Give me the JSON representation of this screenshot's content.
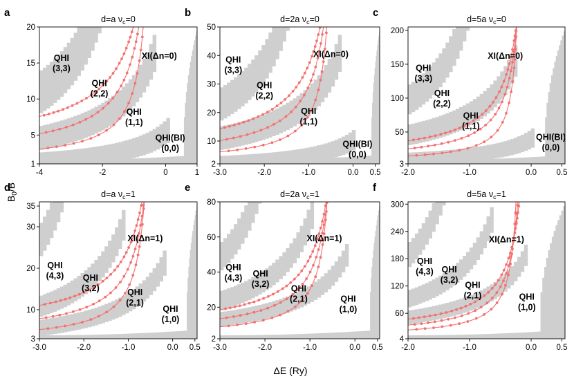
{
  "figure": {
    "xlabel": "ΔE (Ry)",
    "ylabel": "B₀/B"
  },
  "chart_data": [
    {
      "panel": "a",
      "title_d": "d=a",
      "title_nu": "ν",
      "title_nu_sub": "c",
      "title_nu_val": "=0",
      "type": "heatmap",
      "xlim": [
        -4.0,
        1.0
      ],
      "ylim": [
        1,
        20
      ],
      "xticks": [
        -4,
        -2,
        0,
        1
      ],
      "xtick_labels": [
        "-4",
        "-2",
        "0",
        "1"
      ],
      "yticks": [
        1,
        5,
        10,
        15,
        20
      ],
      "ytick_labels": [
        "1",
        "5",
        "10",
        "15",
        "20"
      ],
      "regions": [
        {
          "label": "QHI",
          "sub": "(3,3)",
          "x": -3.3,
          "y": 15.3
        },
        {
          "label": "QHI",
          "sub": "(2,2)",
          "x": -2.1,
          "y": 11.8
        },
        {
          "label": "QHI",
          "sub": "(1,1)",
          "x": -1.0,
          "y": 7.8
        },
        {
          "label": "XI(Δn=0)",
          "sub": "",
          "x": -0.2,
          "y": 15.6
        },
        {
          "label": "QHI(BI)",
          "sub": "(0,0)",
          "x": 0.15,
          "y": 4.2
        }
      ],
      "bands": [
        {
          "h0": 19.5,
          "width": 3.6,
          "v0": -2.4
        },
        {
          "h0": 11.5,
          "width": 2.2,
          "v0": -0.95
        },
        {
          "h0": 4.0,
          "width": 1.5,
          "v0": -0.5
        }
      ],
      "curves": [
        {
          "A": 3.0,
          "c": 0.45,
          "offset": 1.2
        },
        {
          "A": 5.4,
          "c": 0.45,
          "offset": 2.0
        },
        {
          "A": 7.6,
          "c": 0.45,
          "offset": 3.3
        }
      ],
      "bulk": {
        "x0": 0.55,
        "x1": 1.0
      }
    },
    {
      "panel": "b",
      "title_d": "d=2a",
      "title_nu": "ν",
      "title_nu_sub": "c",
      "title_nu_val": "=0",
      "type": "heatmap",
      "xlim": [
        -3.0,
        0.6
      ],
      "ylim": [
        2,
        50
      ],
      "xticks": [
        -3.0,
        -2.0,
        -1.0,
        0.0,
        0.5
      ],
      "xtick_labels": [
        "-3.0",
        "-2.0",
        "-1.0",
        "0.0",
        "0.5"
      ],
      "yticks": [
        2,
        10,
        20,
        30,
        40,
        50
      ],
      "ytick_labels": [
        "2",
        "10",
        "20",
        "30",
        "40",
        "50"
      ],
      "regions": [
        {
          "label": "QHI",
          "sub": "(3,3)",
          "x": -2.7,
          "y": 37.5
        },
        {
          "label": "QHI",
          "sub": "(2,2)",
          "x": -2.0,
          "y": 28.5
        },
        {
          "label": "QHI",
          "sub": "(1,1)",
          "x": -1.0,
          "y": 19.5
        },
        {
          "label": "XI(Δn=0)",
          "sub": "",
          "x": -0.5,
          "y": 39.5
        },
        {
          "label": "QHI(BI)",
          "sub": "(0,0)",
          "x": 0.1,
          "y": 8.0
        }
      ],
      "bands": [
        {
          "h0": 40.0,
          "width": 7.0,
          "v0": -1.9
        },
        {
          "h0": 28.0,
          "width": 5.5,
          "v0": -0.75
        },
        {
          "h0": 7.0,
          "width": 3.0,
          "v0": -0.45
        }
      ],
      "curves": [
        {
          "A": 6.5,
          "c": 0.45,
          "offset": 2.2
        },
        {
          "A": 12.2,
          "c": 0.45,
          "offset": 3.0
        },
        {
          "A": 17.5,
          "c": 0.45,
          "offset": 4.5
        }
      ],
      "bulk": {
        "x0": 0.4,
        "x1": 0.6
      }
    },
    {
      "panel": "c",
      "title_d": "d=5a",
      "title_nu": "ν",
      "title_nu_sub": "c",
      "title_nu_val": "=0",
      "type": "heatmap",
      "xlim": [
        -2.0,
        0.55
      ],
      "ylim": [
        3,
        205
      ],
      "xticks": [
        -2.0,
        -1.0,
        0.0,
        0.5
      ],
      "xtick_labels": [
        "-2.0",
        "-1.0",
        "0.0",
        "0.5"
      ],
      "yticks": [
        3,
        50,
        100,
        150,
        200
      ],
      "ytick_labels": [
        "3",
        "50",
        "100",
        "150",
        "200"
      ],
      "regions": [
        {
          "label": "QHI",
          "sub": "(3,3)",
          "x": -1.75,
          "y": 140
        },
        {
          "label": "QHI",
          "sub": "(2,2)",
          "x": -1.45,
          "y": 103
        },
        {
          "label": "QHI",
          "sub": "(1,1)",
          "x": -0.98,
          "y": 70
        },
        {
          "label": "XI(Δn=0)",
          "sub": "",
          "x": -0.42,
          "y": 158
        },
        {
          "label": "QHI(BI)",
          "sub": "(0,0)",
          "x": 0.32,
          "y": 38
        }
      ],
      "bands": [
        {
          "h0": 158,
          "width": 26,
          "v0": -1.35
        },
        {
          "h0": 110,
          "width": 20,
          "v0": -0.55
        },
        {
          "h0": 28,
          "width": 12,
          "v0": -0.3
        }
      ],
      "curves": [
        {
          "A": 22,
          "c": 0.35,
          "offset": 4
        },
        {
          "A": 42,
          "c": 0.35,
          "offset": 6
        },
        {
          "A": 62,
          "c": 0.35,
          "offset": 10
        }
      ],
      "bulk": {
        "x0": 0.2,
        "x1": 0.55
      }
    },
    {
      "panel": "d",
      "title_d": "d=a",
      "title_nu": "ν",
      "title_nu_sub": "c",
      "title_nu_val": "=1",
      "type": "heatmap",
      "xlim": [
        -3.0,
        0.55
      ],
      "ylim": [
        3,
        36
      ],
      "xticks": [
        -3.0,
        -2.0,
        -1.0,
        0.0,
        0.5
      ],
      "xtick_labels": [
        "-3.0",
        "-2.0",
        "-1.0",
        "0.0",
        "0.5"
      ],
      "yticks": [
        3,
        10,
        20,
        30,
        35
      ],
      "ytick_labels": [
        "3",
        "10",
        "20",
        "30",
        "35"
      ],
      "regions": [
        {
          "label": "QHI",
          "sub": "(4,3)",
          "x": -2.65,
          "y": 20.0
        },
        {
          "label": "QHI",
          "sub": "(3,2)",
          "x": -1.85,
          "y": 17.0
        },
        {
          "label": "QHI",
          "sub": "(2,1)",
          "x": -0.85,
          "y": 13.5
        },
        {
          "label": "XI(Δn=1)",
          "sub": "",
          "x": -0.62,
          "y": 26.5
        },
        {
          "label": "QHI",
          "sub": "(1,0)",
          "x": -0.05,
          "y": 9.5
        }
      ],
      "bands": [
        {
          "h0": 30,
          "width": 4.2,
          "v0": -2.8
        },
        {
          "h0": 22,
          "width": 3.2,
          "v0": -1.5
        },
        {
          "h0": 15,
          "width": 2.6,
          "v0": -0.6
        }
      ],
      "curves": [
        {
          "A": 5.5,
          "c": 0.4,
          "offset": 2.2
        },
        {
          "A": 8.3,
          "c": 0.4,
          "offset": 3.5
        },
        {
          "A": 11.5,
          "c": 0.4,
          "offset": 5.3
        }
      ],
      "bulk": {
        "x0": 0.3,
        "x1": 0.55
      }
    },
    {
      "panel": "e",
      "title_d": "d=2a",
      "title_nu": "ν",
      "title_nu_sub": "c",
      "title_nu_val": "=1",
      "type": "heatmap",
      "xlim": [
        -3.0,
        0.55
      ],
      "ylim": [
        2,
        80
      ],
      "xticks": [
        -3.0,
        -2.0,
        -1.0,
        0.0,
        0.5
      ],
      "xtick_labels": [
        "-3.0",
        "-2.0",
        "-1.0",
        "0.0",
        "0.5"
      ],
      "yticks": [
        2,
        20,
        40,
        60,
        80
      ],
      "ytick_labels": [
        "2",
        "20",
        "40",
        "60",
        "80"
      ],
      "regions": [
        {
          "label": "QHI",
          "sub": "(4,3)",
          "x": -2.7,
          "y": 41.0
        },
        {
          "label": "QHI",
          "sub": "(3,2)",
          "x": -2.1,
          "y": 37.5
        },
        {
          "label": "QHI",
          "sub": "(2,1)",
          "x": -1.25,
          "y": 29.0
        },
        {
          "label": "XI(Δn=1)",
          "sub": "",
          "x": -0.68,
          "y": 57.5
        },
        {
          "label": "QHI",
          "sub": "(1,0)",
          "x": -0.15,
          "y": 23.0
        }
      ],
      "bands": [
        {
          "h0": 65,
          "width": 9,
          "v0": -2.5
        },
        {
          "h0": 50,
          "width": 7,
          "v0": -1.4
        },
        {
          "h0": 35,
          "width": 5.5,
          "v0": -0.6
        }
      ],
      "curves": [
        {
          "A": 11.5,
          "c": 0.4,
          "offset": 2.5
        },
        {
          "A": 18.0,
          "c": 0.4,
          "offset": 4.0
        },
        {
          "A": 25.0,
          "c": 0.4,
          "offset": 6.0
        }
      ],
      "bulk": {
        "x0": 0.32,
        "x1": 0.55
      }
    },
    {
      "panel": "f",
      "title_d": "d=5a",
      "title_nu": "ν",
      "title_nu_sub": "c",
      "title_nu_val": "=1",
      "type": "heatmap",
      "xlim": [
        -2.0,
        0.55
      ],
      "ylim": [
        4,
        305
      ],
      "xticks": [
        -2.0,
        -1.0,
        0.0,
        0.5
      ],
      "xtick_labels": [
        "-2.0",
        "-1.0",
        "0.0",
        "0.5"
      ],
      "yticks": [
        4,
        60,
        120,
        180,
        240,
        300
      ],
      "ytick_labels": [
        "4",
        "60",
        "120",
        "180",
        "240",
        "300"
      ],
      "regions": [
        {
          "label": "QHI",
          "sub": "(4,3)",
          "x": -1.73,
          "y": 168
        },
        {
          "label": "QHI",
          "sub": "(3,2)",
          "x": -1.33,
          "y": 150
        },
        {
          "label": "QHI",
          "sub": "(2,1)",
          "x": -0.95,
          "y": 116
        },
        {
          "label": "XI(Δn=1)",
          "sub": "",
          "x": -0.4,
          "y": 216
        },
        {
          "label": "QHI",
          "sub": "(1,0)",
          "x": -0.07,
          "y": 90
        }
      ],
      "bands": [
        {
          "h0": 240,
          "width": 30,
          "v0": -1.7
        },
        {
          "h0": 185,
          "width": 24,
          "v0": -0.95
        },
        {
          "h0": 130,
          "width": 20,
          "v0": -0.4
        }
      ],
      "curves": [
        {
          "A": 36,
          "c": 0.35,
          "offset": 6
        },
        {
          "A": 55,
          "c": 0.35,
          "offset": 9
        },
        {
          "A": 76,
          "c": 0.35,
          "offset": 14
        }
      ],
      "bulk": {
        "x0": 0.12,
        "x1": 0.55
      }
    }
  ],
  "colors": {
    "gray": "#cfcfcf",
    "curve": "#f47070",
    "axis": "#000000"
  }
}
